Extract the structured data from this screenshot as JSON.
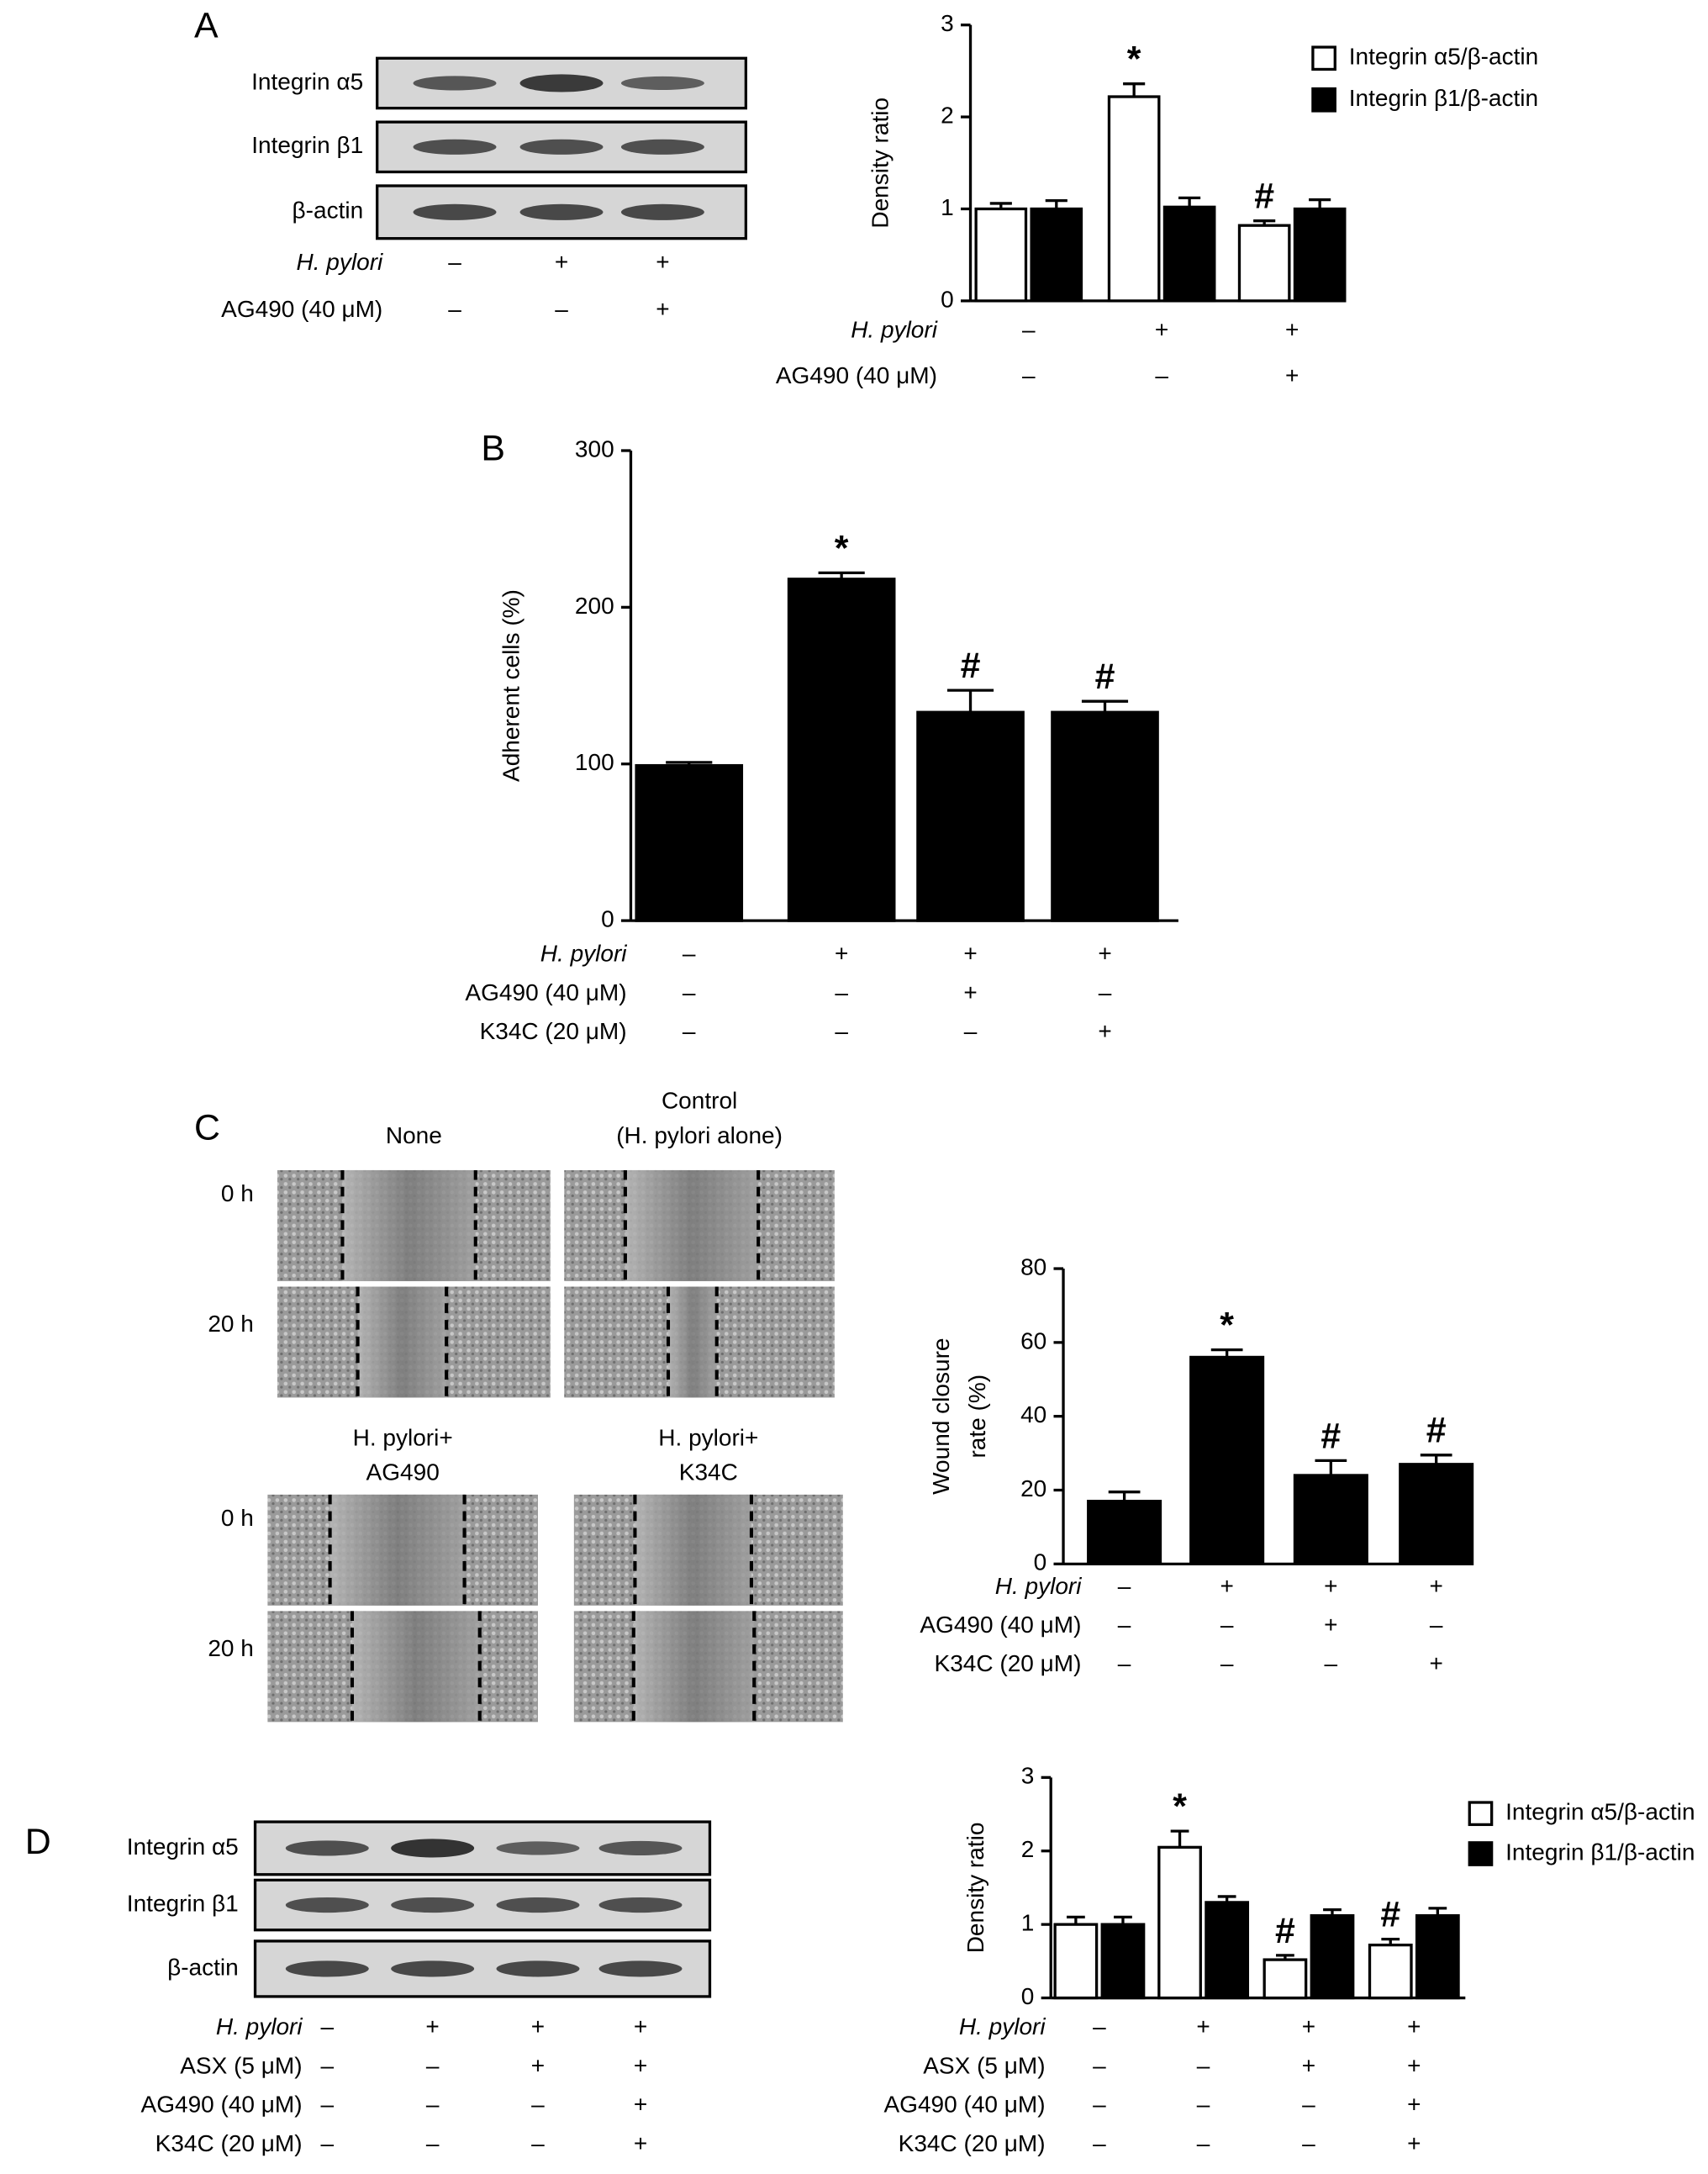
{
  "panels": [
    "A",
    "B",
    "C",
    "D"
  ],
  "blot_a": {
    "rows": [
      "Integrin α5",
      "Integrin β1",
      "β-actin"
    ],
    "conditions": [
      {
        "label": "H. pylori",
        "signs": [
          "–",
          "+",
          "+"
        ]
      },
      {
        "label": "AG490 (40 μM)",
        "signs": [
          "–",
          "–",
          "+"
        ]
      }
    ]
  },
  "blot_d": {
    "rows": [
      "Integrin α5",
      "Integrin β1",
      "β-actin"
    ],
    "conditions": [
      {
        "label": "H. pylori",
        "signs": [
          "–",
          "+",
          "+",
          "+"
        ]
      },
      {
        "label": "ASX (5 μM)",
        "signs": [
          "–",
          "–",
          "+",
          "+"
        ]
      },
      {
        "label": "AG490 (40 μM)",
        "signs": [
          "–",
          "–",
          "–",
          "+"
        ]
      },
      {
        "label": "K34C (20 μM)",
        "signs": [
          "–",
          "–",
          "–",
          "+"
        ]
      }
    ]
  },
  "wound": {
    "headings": [
      [
        "None"
      ],
      [
        "Control",
        "(H. pylori alone)"
      ],
      [
        "H. pylori+",
        "AG490"
      ],
      [
        "H. pylori+",
        "K34C"
      ]
    ],
    "times": [
      "0 h",
      "20 h"
    ]
  },
  "chart_data": [
    {
      "type": "bar",
      "y_label": [
        "Density ratio"
      ],
      "ylim": [
        0,
        3
      ],
      "yticks": [
        0,
        1,
        2,
        3
      ],
      "series": [
        {
          "name": "Integrin α5/β-actin",
          "color": "#ffffff",
          "values": [
            1.0,
            2.22,
            0.82
          ],
          "errors": [
            0.06,
            0.14,
            0.05
          ],
          "marks": [
            null,
            "*",
            "#"
          ]
        },
        {
          "name": "Integrin β1/β-actin",
          "color": "#000000",
          "values": [
            1.0,
            1.02,
            1.0
          ],
          "errors": [
            0.09,
            0.1,
            0.1
          ],
          "marks": [
            null,
            null,
            null
          ]
        }
      ],
      "conditions": [
        {
          "label": "H. pylori",
          "signs": [
            "–",
            "+",
            "+"
          ]
        },
        {
          "label": "AG490 (40 μM)",
          "signs": [
            "–",
            "–",
            "+"
          ]
        }
      ]
    },
    {
      "type": "bar",
      "y_label": [
        "Adherent cells (%)"
      ],
      "ylim": [
        0,
        300
      ],
      "yticks": [
        0,
        100,
        200,
        300
      ],
      "series": [
        {
          "color": "#000000",
          "values": [
            99,
            218,
            133,
            133
          ],
          "errors": [
            2,
            4,
            14,
            7
          ],
          "marks": [
            null,
            "*",
            "#",
            "#"
          ]
        }
      ],
      "conditions": [
        {
          "label": "H. pylori",
          "signs": [
            "–",
            "+",
            "+",
            "+"
          ]
        },
        {
          "label": "AG490 (40 μM)",
          "signs": [
            "–",
            "–",
            "+",
            "–"
          ]
        },
        {
          "label": "K34C (20 μM)",
          "signs": [
            "–",
            "–",
            "–",
            "+"
          ]
        }
      ]
    },
    {
      "type": "bar",
      "y_label": [
        "Wound closure",
        "rate (%)"
      ],
      "ylim": [
        0,
        80
      ],
      "yticks": [
        0,
        20,
        40,
        60,
        80
      ],
      "series": [
        {
          "color": "#000000",
          "values": [
            17,
            56,
            24,
            27
          ],
          "errors": [
            2.5,
            2,
            4,
            2.5
          ],
          "marks": [
            null,
            "*",
            "#",
            "#"
          ]
        }
      ],
      "conditions": [
        {
          "label": "H. pylori",
          "signs": [
            "–",
            "+",
            "+",
            "+"
          ]
        },
        {
          "label": "AG490 (40 μM)",
          "signs": [
            "–",
            "–",
            "+",
            "–"
          ]
        },
        {
          "label": "K34C (20 μM)",
          "signs": [
            "–",
            "–",
            "–",
            "+"
          ]
        }
      ]
    },
    {
      "type": "bar",
      "y_label": [
        "Density ratio"
      ],
      "ylim": [
        0,
        3
      ],
      "yticks": [
        0,
        1,
        2,
        3
      ],
      "series": [
        {
          "name": "Integrin α5/β-actin",
          "color": "#ffffff",
          "values": [
            1.0,
            2.05,
            0.52,
            0.72
          ],
          "errors": [
            0.1,
            0.22,
            0.06,
            0.08
          ],
          "marks": [
            null,
            "*",
            "#",
            "#"
          ]
        },
        {
          "name": "Integrin β1/β-actin",
          "color": "#000000",
          "values": [
            1.0,
            1.3,
            1.12,
            1.12
          ],
          "errors": [
            0.1,
            0.08,
            0.08,
            0.1
          ],
          "marks": [
            null,
            null,
            null,
            null
          ]
        }
      ],
      "conditions": [
        {
          "label": "H. pylori",
          "signs": [
            "–",
            "+",
            "+",
            "+"
          ]
        },
        {
          "label": "ASX (5 μM)",
          "signs": [
            "–",
            "–",
            "+",
            "+"
          ]
        },
        {
          "label": "AG490 (40 μM)",
          "signs": [
            "–",
            "–",
            "–",
            "+"
          ]
        },
        {
          "label": "K34C (20 μM)",
          "signs": [
            "–",
            "–",
            "–",
            "+"
          ]
        }
      ]
    }
  ]
}
